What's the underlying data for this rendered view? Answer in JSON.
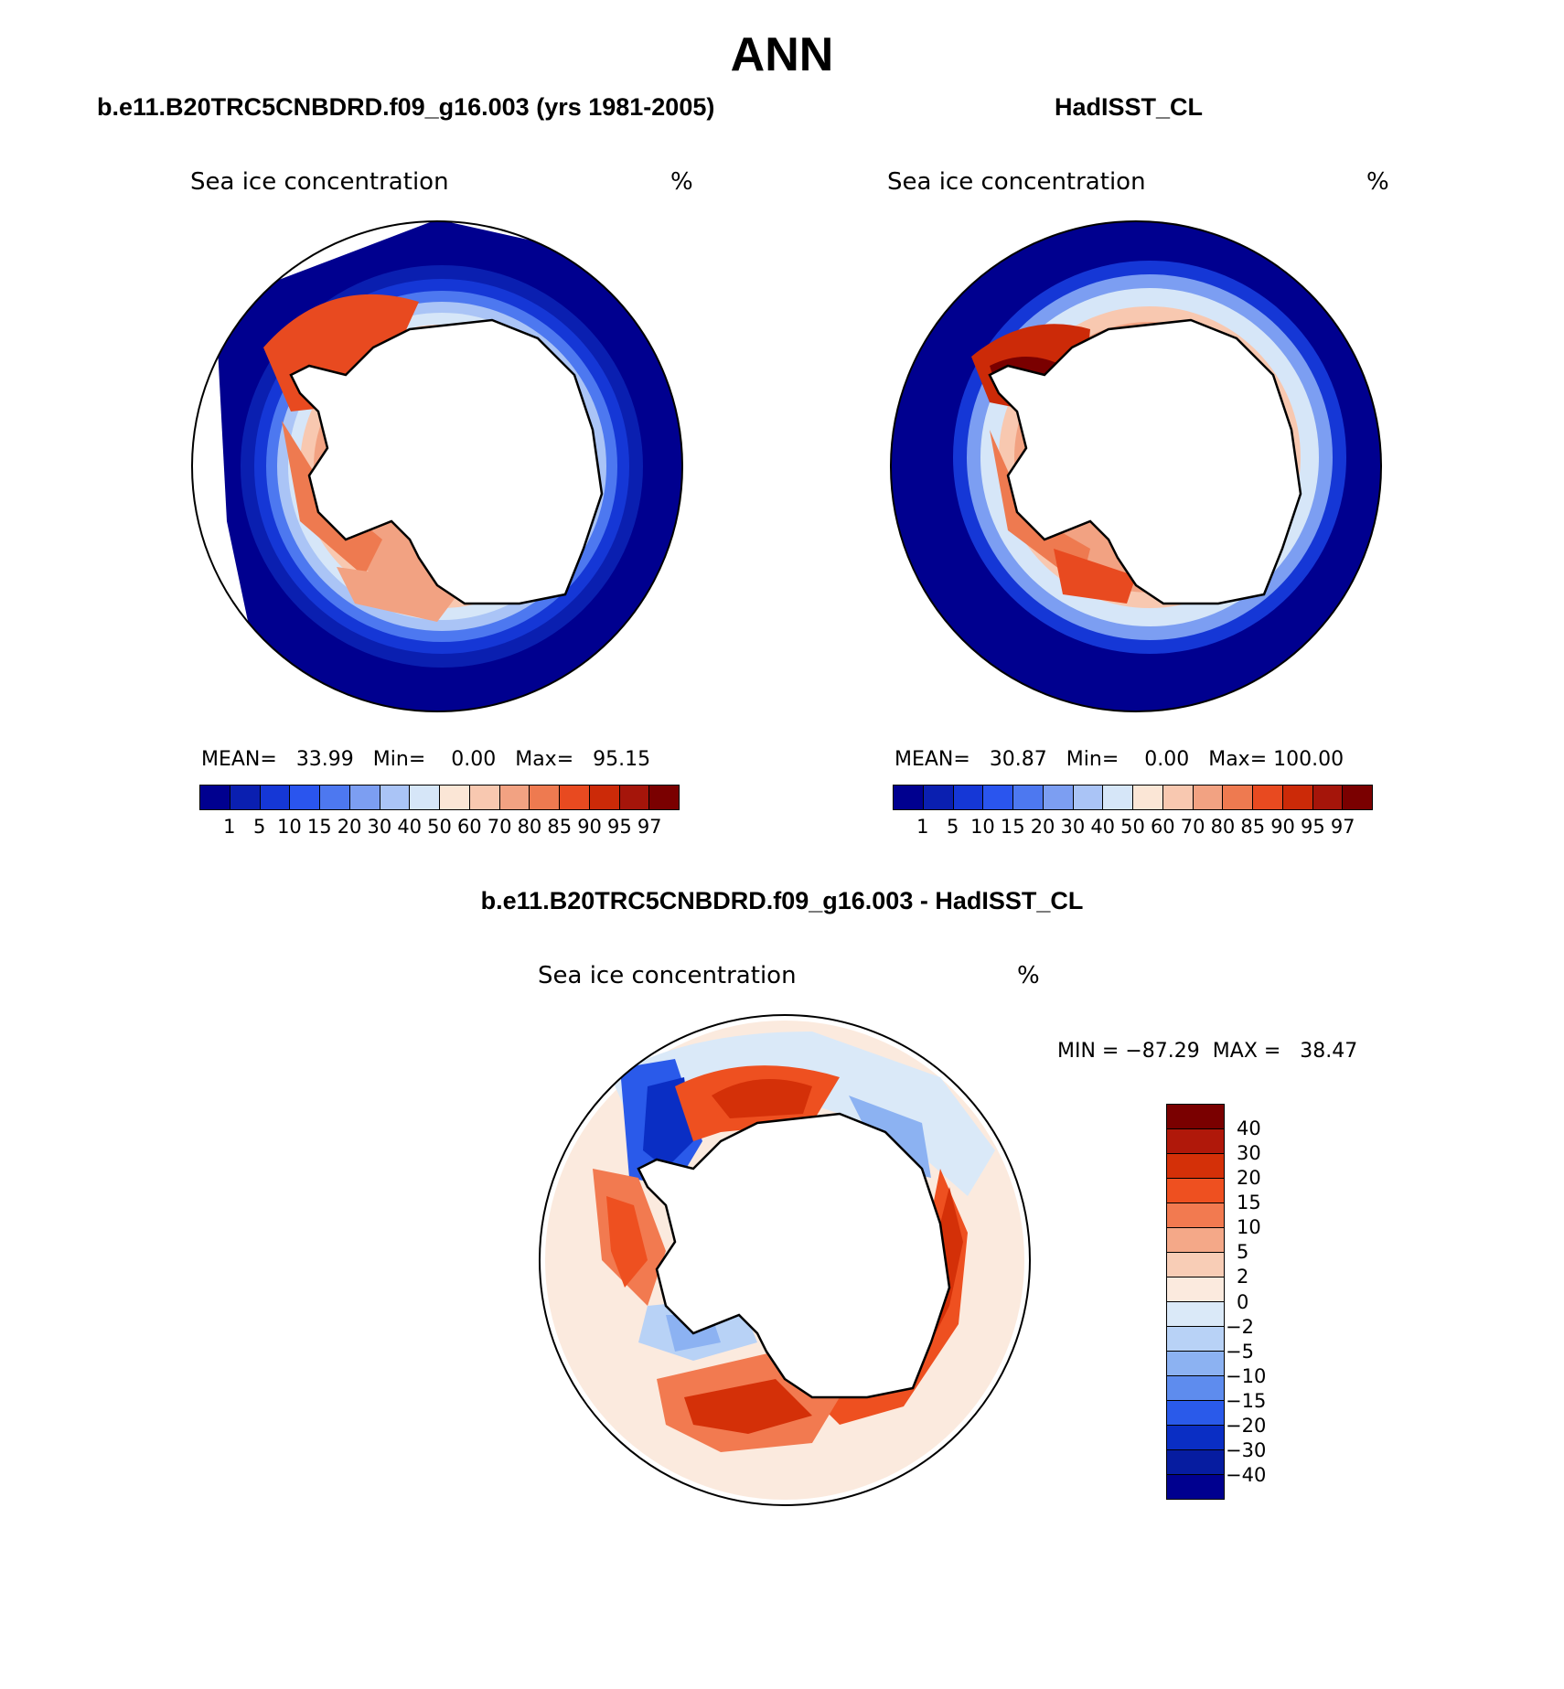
{
  "title": "ANN",
  "panels": [
    {
      "title": "b.e11.B20TRC5CNBDRD.f09_g16.003 (yrs 1981-2005)",
      "variable": "Sea ice concentration",
      "units": "%",
      "stats": {
        "mean_label": "MEAN=",
        "mean": "33.99",
        "min_label": "Min=",
        "min": "0.00",
        "max_label": "Max=",
        "max": "95.15"
      }
    },
    {
      "title": "HadISST_CL",
      "variable": "Sea ice concentration",
      "units": "%",
      "stats": {
        "mean_label": "MEAN=",
        "mean": "30.87",
        "min_label": "Min=",
        "min": "0.00",
        "max_label": "Max=",
        "max": "100.00"
      }
    },
    {
      "title": "b.e11.B20TRC5CNBDRD.f09_g16.003 - HadISST_CL",
      "variable": "Sea ice concentration",
      "units": "%",
      "stats": {
        "min_label": "MIN =",
        "min": "−87.29",
        "max_label": "MAX =",
        "max": "38.47"
      }
    }
  ],
  "colorbar_abs": {
    "labels": [
      "1",
      "5",
      "10",
      "15",
      "20",
      "30",
      "40",
      "50",
      "60",
      "70",
      "80",
      "85",
      "90",
      "95",
      "97"
    ],
    "colors": [
      "#00008f",
      "#0a1fb0",
      "#1537d6",
      "#2a55ee",
      "#4d78f0",
      "#7c9ef2",
      "#aac4f6",
      "#d6e6f8",
      "#fbe6d6",
      "#f8c8b0",
      "#f2a282",
      "#ee7a50",
      "#e84a20",
      "#cc2a08",
      "#a5150a",
      "#7a0000"
    ]
  },
  "colorbar_diff": {
    "labels": [
      "40",
      "30",
      "20",
      "15",
      "10",
      "5",
      "2",
      "0",
      "−2",
      "−5",
      "−10",
      "−15",
      "−20",
      "−30",
      "−40"
    ],
    "colors": [
      "#7a0000",
      "#b0180a",
      "#d43008",
      "#ee5020",
      "#f27a50",
      "#f4a888",
      "#f8cdb6",
      "#fbeade",
      "#dae9f8",
      "#b8d2f6",
      "#8cb2f2",
      "#5e8cee",
      "#2a5aea",
      "#0a2ec4",
      "#061ca0",
      "#00008f"
    ]
  },
  "chart_data": [
    {
      "type": "heatmap",
      "title": "b.e11.B20TRC5CNBDRD.f09_g16.003 (yrs 1981-2005)",
      "variable": "Sea ice concentration",
      "units": "%",
      "mean": 33.99,
      "min": 0.0,
      "max": 95.15,
      "levels": [
        1,
        5,
        10,
        15,
        20,
        30,
        40,
        50,
        60,
        70,
        80,
        85,
        90,
        95,
        97
      ]
    },
    {
      "type": "heatmap",
      "title": "HadISST_CL",
      "variable": "Sea ice concentration",
      "units": "%",
      "mean": 30.87,
      "min": 0.0,
      "max": 100.0,
      "levels": [
        1,
        5,
        10,
        15,
        20,
        30,
        40,
        50,
        60,
        70,
        80,
        85,
        90,
        95,
        97
      ]
    },
    {
      "type": "heatmap",
      "title": "b.e11.B20TRC5CNBDRD.f09_g16.003 - HadISST_CL",
      "variable": "Sea ice concentration",
      "units": "%",
      "min": -87.29,
      "max": 38.47,
      "levels": [
        -40,
        -30,
        -20,
        -15,
        -10,
        -5,
        -2,
        0,
        2,
        5,
        10,
        15,
        20,
        30,
        40
      ]
    }
  ]
}
